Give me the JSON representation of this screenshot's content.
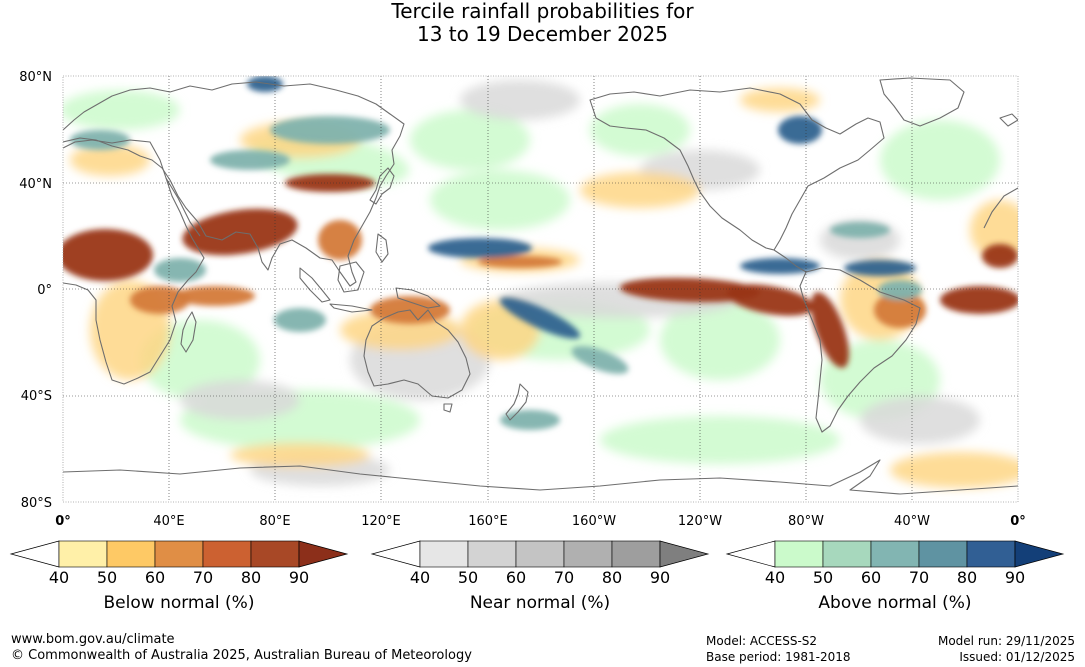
{
  "title_line1": "Tercile rainfall probabilities for",
  "title_line2": "13 to 19 December 2025",
  "map": {
    "latitude_labels": [
      "80°N",
      "40°N",
      "0°",
      "40°S",
      "80°S"
    ],
    "longitude_labels": [
      "0°",
      "40°E",
      "80°E",
      "120°E",
      "160°E",
      "160°W",
      "120°W",
      "80°W",
      "40°W",
      "0°"
    ]
  },
  "legends": [
    {
      "name": "Below normal (%)",
      "ticks": [
        "40",
        "50",
        "60",
        "70",
        "80",
        "90"
      ],
      "colors": [
        "#fff0a8",
        "#fec965",
        "#e08e45",
        "#cc6131",
        "#a84826",
        "#8c2f1a"
      ]
    },
    {
      "name": "Near normal (%)",
      "ticks": [
        "40",
        "50",
        "60",
        "70",
        "80",
        "90"
      ],
      "colors": [
        "#e6e6e6",
        "#d3d3d3",
        "#c4c4c4",
        "#b0b0b0",
        "#9e9e9e",
        "#7f7f7f"
      ]
    },
    {
      "name": "Above normal (%)",
      "ticks": [
        "40",
        "50",
        "60",
        "70",
        "80",
        "90"
      ],
      "colors": [
        "#cbfacb",
        "#a7d8bd",
        "#82b5b2",
        "#5f93a2",
        "#315f94",
        "#133f78"
      ]
    }
  ],
  "footer": {
    "website": "www.bom.gov.au/climate",
    "copyright": "© Commonwealth of Australia 2025, Australian Bureau of Meteorology",
    "model": "Model: ACCESS-S2",
    "base_period": "Base period: 1981-2018",
    "model_run": "Model run: 29/11/2025",
    "issued": "Issued: 01/12/2025"
  },
  "colors": {
    "below_strong": "#9a3518",
    "below_mid": "#d47a3a",
    "below_light": "#fed685",
    "near": "#d9d9d9",
    "above_light": "#cbfacb",
    "above_mid": "#7fb2ad",
    "above_strong": "#2f628f",
    "coastline": "#6e6e6e"
  }
}
